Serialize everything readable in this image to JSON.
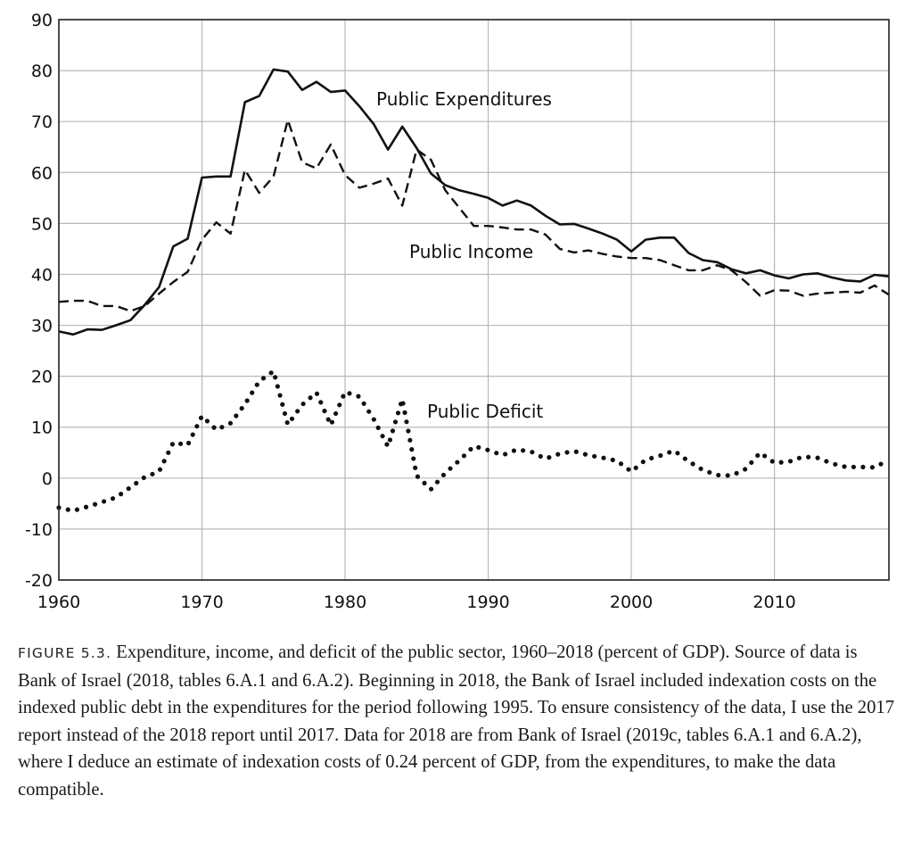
{
  "chart_data": {
    "type": "line",
    "title": "",
    "xlabel": "",
    "ylabel": "",
    "xlim": [
      1960,
      2018
    ],
    "ylim": [
      -20,
      90
    ],
    "x_ticks": [
      1960,
      1970,
      1980,
      1990,
      2000,
      2010
    ],
    "y_ticks": [
      -20,
      -10,
      0,
      10,
      20,
      30,
      40,
      50,
      60,
      70,
      80,
      90
    ],
    "grid": true,
    "legend": "none (series labelled directly on plot)",
    "x": [
      1960,
      1961,
      1962,
      1963,
      1964,
      1965,
      1966,
      1967,
      1968,
      1969,
      1970,
      1971,
      1972,
      1973,
      1974,
      1975,
      1976,
      1977,
      1978,
      1979,
      1980,
      1981,
      1982,
      1983,
      1984,
      1985,
      1986,
      1987,
      1988,
      1989,
      1990,
      1991,
      1992,
      1993,
      1994,
      1995,
      1996,
      1997,
      1998,
      1999,
      2000,
      2001,
      2002,
      2003,
      2004,
      2005,
      2006,
      2007,
      2008,
      2009,
      2010,
      2011,
      2012,
      2013,
      2014,
      2015,
      2016,
      2017,
      2018
    ],
    "series": [
      {
        "name": "Public Expenditures",
        "style": "solid",
        "values": [
          28.8,
          28.2,
          29.2,
          29.1,
          30.0,
          31.0,
          34.0,
          37.5,
          45.5,
          47.0,
          59.0,
          59.2,
          59.2,
          73.8,
          75.0,
          80.2,
          79.8,
          76.2,
          77.8,
          75.8,
          76.1,
          73.0,
          69.5,
          64.5,
          69.0,
          64.8,
          59.8,
          57.5,
          56.5,
          55.8,
          55.0,
          53.5,
          54.5,
          53.5,
          51.5,
          49.8,
          49.9,
          49.0,
          48.0,
          46.8,
          44.5,
          46.8,
          47.2,
          47.2,
          44.2,
          42.8,
          42.4,
          41.0,
          40.2,
          40.8,
          39.8,
          39.2,
          40.0,
          40.2,
          39.4,
          38.8,
          38.6,
          39.9,
          39.6
        ]
      },
      {
        "name": "Public Income",
        "style": "dashed",
        "values": [
          34.6,
          34.8,
          34.8,
          33.8,
          33.8,
          32.8,
          33.8,
          36.2,
          38.5,
          40.5,
          46.8,
          50.2,
          48.0,
          60.5,
          56.0,
          59.2,
          70.3,
          62.0,
          60.8,
          65.5,
          59.5,
          57.0,
          57.8,
          58.8,
          53.5,
          64.5,
          62.5,
          56.5,
          53.0,
          49.5,
          49.5,
          49.2,
          48.8,
          48.8,
          47.8,
          45.0,
          44.3,
          44.7,
          44.0,
          43.5,
          43.2,
          43.2,
          42.8,
          41.8,
          40.8,
          40.8,
          41.8,
          40.8,
          38.5,
          35.8,
          36.9,
          36.8,
          35.8,
          36.2,
          36.4,
          36.6,
          36.4,
          37.8,
          36.0
        ]
      },
      {
        "name": "Public Deficit",
        "style": "dotted",
        "values": [
          -5.8,
          -6.4,
          -5.6,
          -4.7,
          -3.8,
          -1.8,
          0.2,
          1.3,
          7.0,
          6.5,
          12.2,
          9.5,
          10.8,
          14.5,
          19.0,
          21.0,
          10.5,
          14.4,
          16.8,
          10.4,
          16.9,
          16.0,
          11.6,
          6.2,
          15.5,
          0.5,
          -2.2,
          1.0,
          3.5,
          6.3,
          5.5,
          4.5,
          5.6,
          5.2,
          3.8,
          4.8,
          5.3,
          4.5,
          4.0,
          3.4,
          1.3,
          3.6,
          4.4,
          5.4,
          3.3,
          1.6,
          0.6,
          0.5,
          1.8,
          5.0,
          3.0,
          3.2,
          4.2,
          4.0,
          2.9,
          2.2,
          2.2,
          2.1,
          3.6
        ]
      }
    ],
    "annotations": [
      "Public Expenditures",
      "Public Income",
      "Public Deficit"
    ]
  },
  "caption": {
    "label": "FIGURE 5.3.",
    "text": " Expenditure, income, and deficit of the public sector, 1960–2018 (percent of GDP). Source of data is Bank of Israel (2018, tables 6.A.1 and 6.A.2). Beginning in 2018, the Bank of Israel included indexation costs on the indexed public debt in the expenditures for the period following 1995. To ensure consistency of the data, I use the 2017 report instead of the 2018 report until 2017. Data for 2018 are from Bank of Israel (2019c, tables 6.A.1 and 6.A.2), where I deduce an estimate of indexation costs of 0.24 percent of GDP, from the expenditures, to make the data compatible."
  }
}
